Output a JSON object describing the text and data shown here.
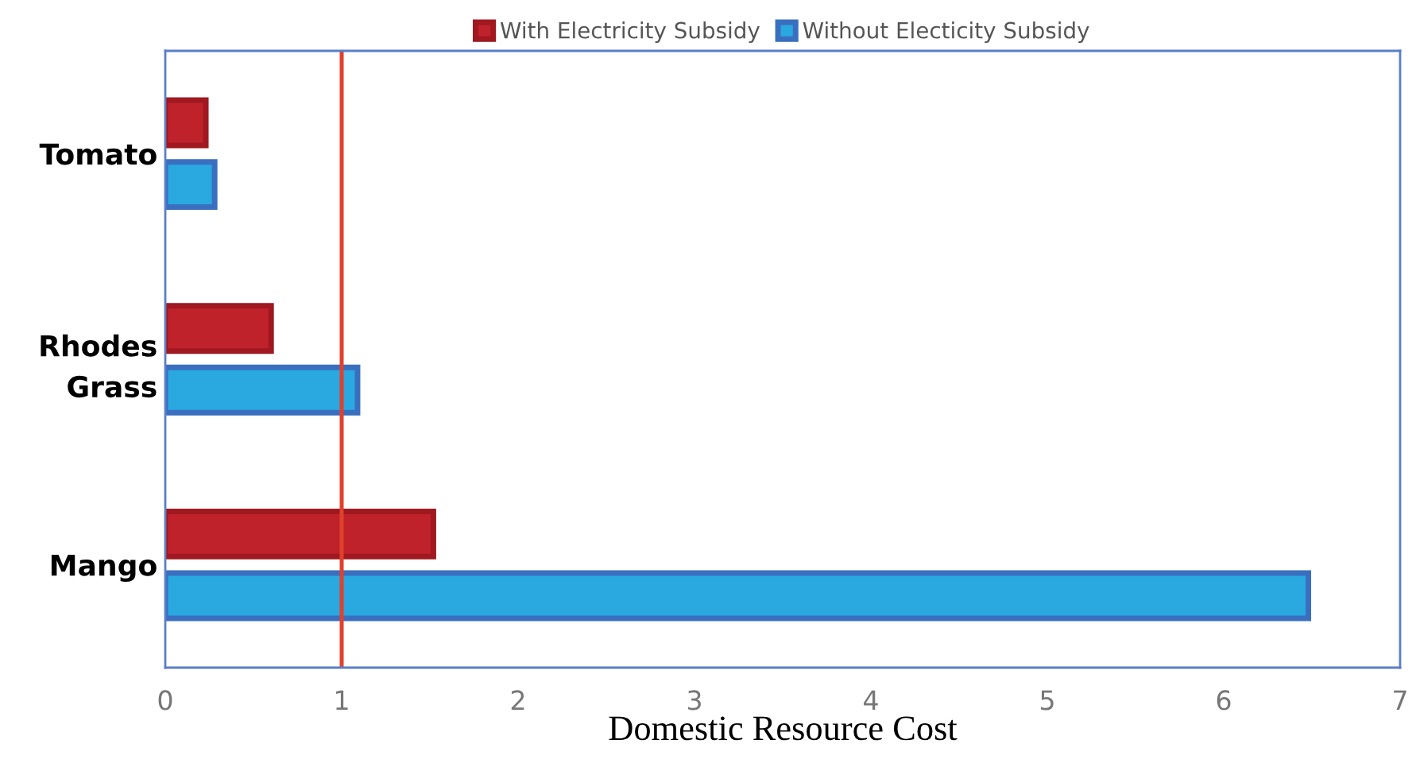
{
  "chart_data": {
    "type": "bar",
    "orientation": "horizontal",
    "xlabel": "Domestic Resource Cost",
    "categories": [
      "Tomato",
      "Rhodes Grass",
      "Mango"
    ],
    "series": [
      {
        "name": "With Electricity Subsidy",
        "color": "#c0222b",
        "values": [
          0.23,
          0.6,
          1.52
        ]
      },
      {
        "name": "Without Electicity Subsidy",
        "color": "#2aa8e0",
        "values": [
          0.28,
          1.09,
          6.48
        ]
      }
    ],
    "xlim": [
      0,
      7
    ],
    "xticks": [
      0,
      1,
      2,
      3,
      4,
      5,
      6,
      7
    ],
    "grid": false,
    "legend": "top",
    "ref_lines": [
      {
        "axis": "x",
        "value": 1,
        "color": "#e0412c"
      }
    ]
  }
}
